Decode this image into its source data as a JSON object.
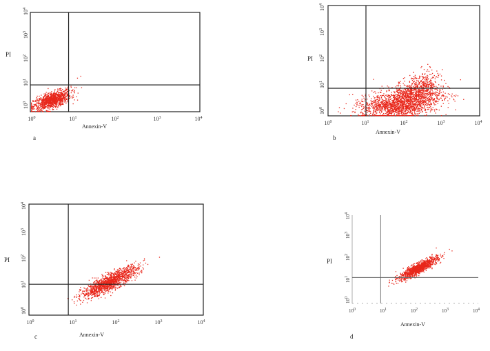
{
  "figure": {
    "background": "#ffffff",
    "dot_color": "#e8271b"
  },
  "chart_data": [
    {
      "type": "scatter",
      "panel": "a",
      "xlabel": "Annexin-V",
      "ylabel": "PI",
      "xlim": [
        1,
        10000
      ],
      "ylim": [
        1,
        10000
      ],
      "xscale": "log",
      "yscale": "log",
      "x_ticks": [
        "10",
        "10",
        "10",
        "10",
        "10"
      ],
      "x_tick_exp": [
        "0",
        "1",
        "2",
        "3",
        "4"
      ],
      "y_ticks": [
        "10",
        "10",
        "10",
        "10",
        "10"
      ],
      "y_tick_exp": [
        "0",
        "1",
        "2",
        "3",
        "4"
      ],
      "quadrant_gate": {
        "x": 8,
        "y": 12
      },
      "clusters": [
        {
          "center": [
            3.2,
            3.0
          ],
          "spread": [
            0.22,
            0.2
          ],
          "n": 1100,
          "correlation": 0.6
        },
        {
          "center": [
            15,
            20
          ],
          "spread": [
            0.15,
            0.15
          ],
          "n": 3,
          "correlation": 0
        }
      ],
      "grid": false
    },
    {
      "type": "scatter",
      "panel": "b",
      "xlabel": "Annexin-V",
      "ylabel": "PI",
      "xlim": [
        1,
        10000
      ],
      "ylim": [
        1,
        10000
      ],
      "xscale": "log",
      "yscale": "log",
      "x_ticks": [
        "10",
        "10",
        "10",
        "10",
        "10"
      ],
      "x_tick_exp": [
        "0",
        "1",
        "2",
        "3",
        "4"
      ],
      "y_ticks": [
        "10",
        "10",
        "10",
        "10",
        "10"
      ],
      "y_tick_exp": [
        "0",
        "1",
        "2",
        "3",
        "4"
      ],
      "quadrant_gate": {
        "x": 10,
        "y": 10
      },
      "clusters": [
        {
          "center": [
            120,
            3.5
          ],
          "spread": [
            0.45,
            0.3
          ],
          "n": 1500,
          "correlation": 0.35
        },
        {
          "center": [
            35,
            2.2
          ],
          "spread": [
            0.45,
            0.2
          ],
          "n": 500,
          "correlation": 0
        },
        {
          "center": [
            260,
            12
          ],
          "spread": [
            0.25,
            0.28
          ],
          "n": 350,
          "correlation": 0.4
        }
      ],
      "grid": false
    },
    {
      "type": "scatter",
      "panel": "c",
      "xlabel": "Annexin-V",
      "ylabel": "PI",
      "xlim": [
        1,
        10000
      ],
      "ylim": [
        1,
        10000
      ],
      "xscale": "log",
      "yscale": "log",
      "x_ticks": [
        "10",
        "10",
        "10",
        "10",
        "10"
      ],
      "x_tick_exp": [
        "0",
        "1",
        "2",
        "3",
        "4"
      ],
      "y_ticks": [
        "10",
        "10",
        "10",
        "10",
        "10"
      ],
      "y_tick_exp": [
        "0",
        "1",
        "2",
        "3",
        "4"
      ],
      "quadrant_gate": {
        "x": 8,
        "y": 13
      },
      "clusters": [
        {
          "center": [
            70,
            16
          ],
          "spread": [
            0.32,
            0.28
          ],
          "n": 1400,
          "correlation": 0.85
        }
      ],
      "grid": false
    },
    {
      "type": "scatter",
      "panel": "d",
      "xlabel": "Annexin-V",
      "ylabel": "PI",
      "xlim": [
        1,
        10000
      ],
      "ylim": [
        1,
        10000
      ],
      "xscale": "log",
      "yscale": "log",
      "x_ticks": [
        "10",
        "10",
        "10",
        "10",
        "10"
      ],
      "x_tick_exp": [
        "0",
        "1",
        "2",
        "3",
        "4"
      ],
      "y_ticks": [
        "10",
        "10",
        "10",
        "10",
        "10"
      ],
      "y_tick_exp": [
        "0",
        "1",
        "2",
        "3",
        "4"
      ],
      "quadrant_gate": {
        "x": 8,
        "y": 15
      },
      "clusters": [
        {
          "center": [
            120,
            40
          ],
          "spread": [
            0.3,
            0.25
          ],
          "n": 1200,
          "correlation": 0.88
        }
      ],
      "grid": false
    }
  ]
}
